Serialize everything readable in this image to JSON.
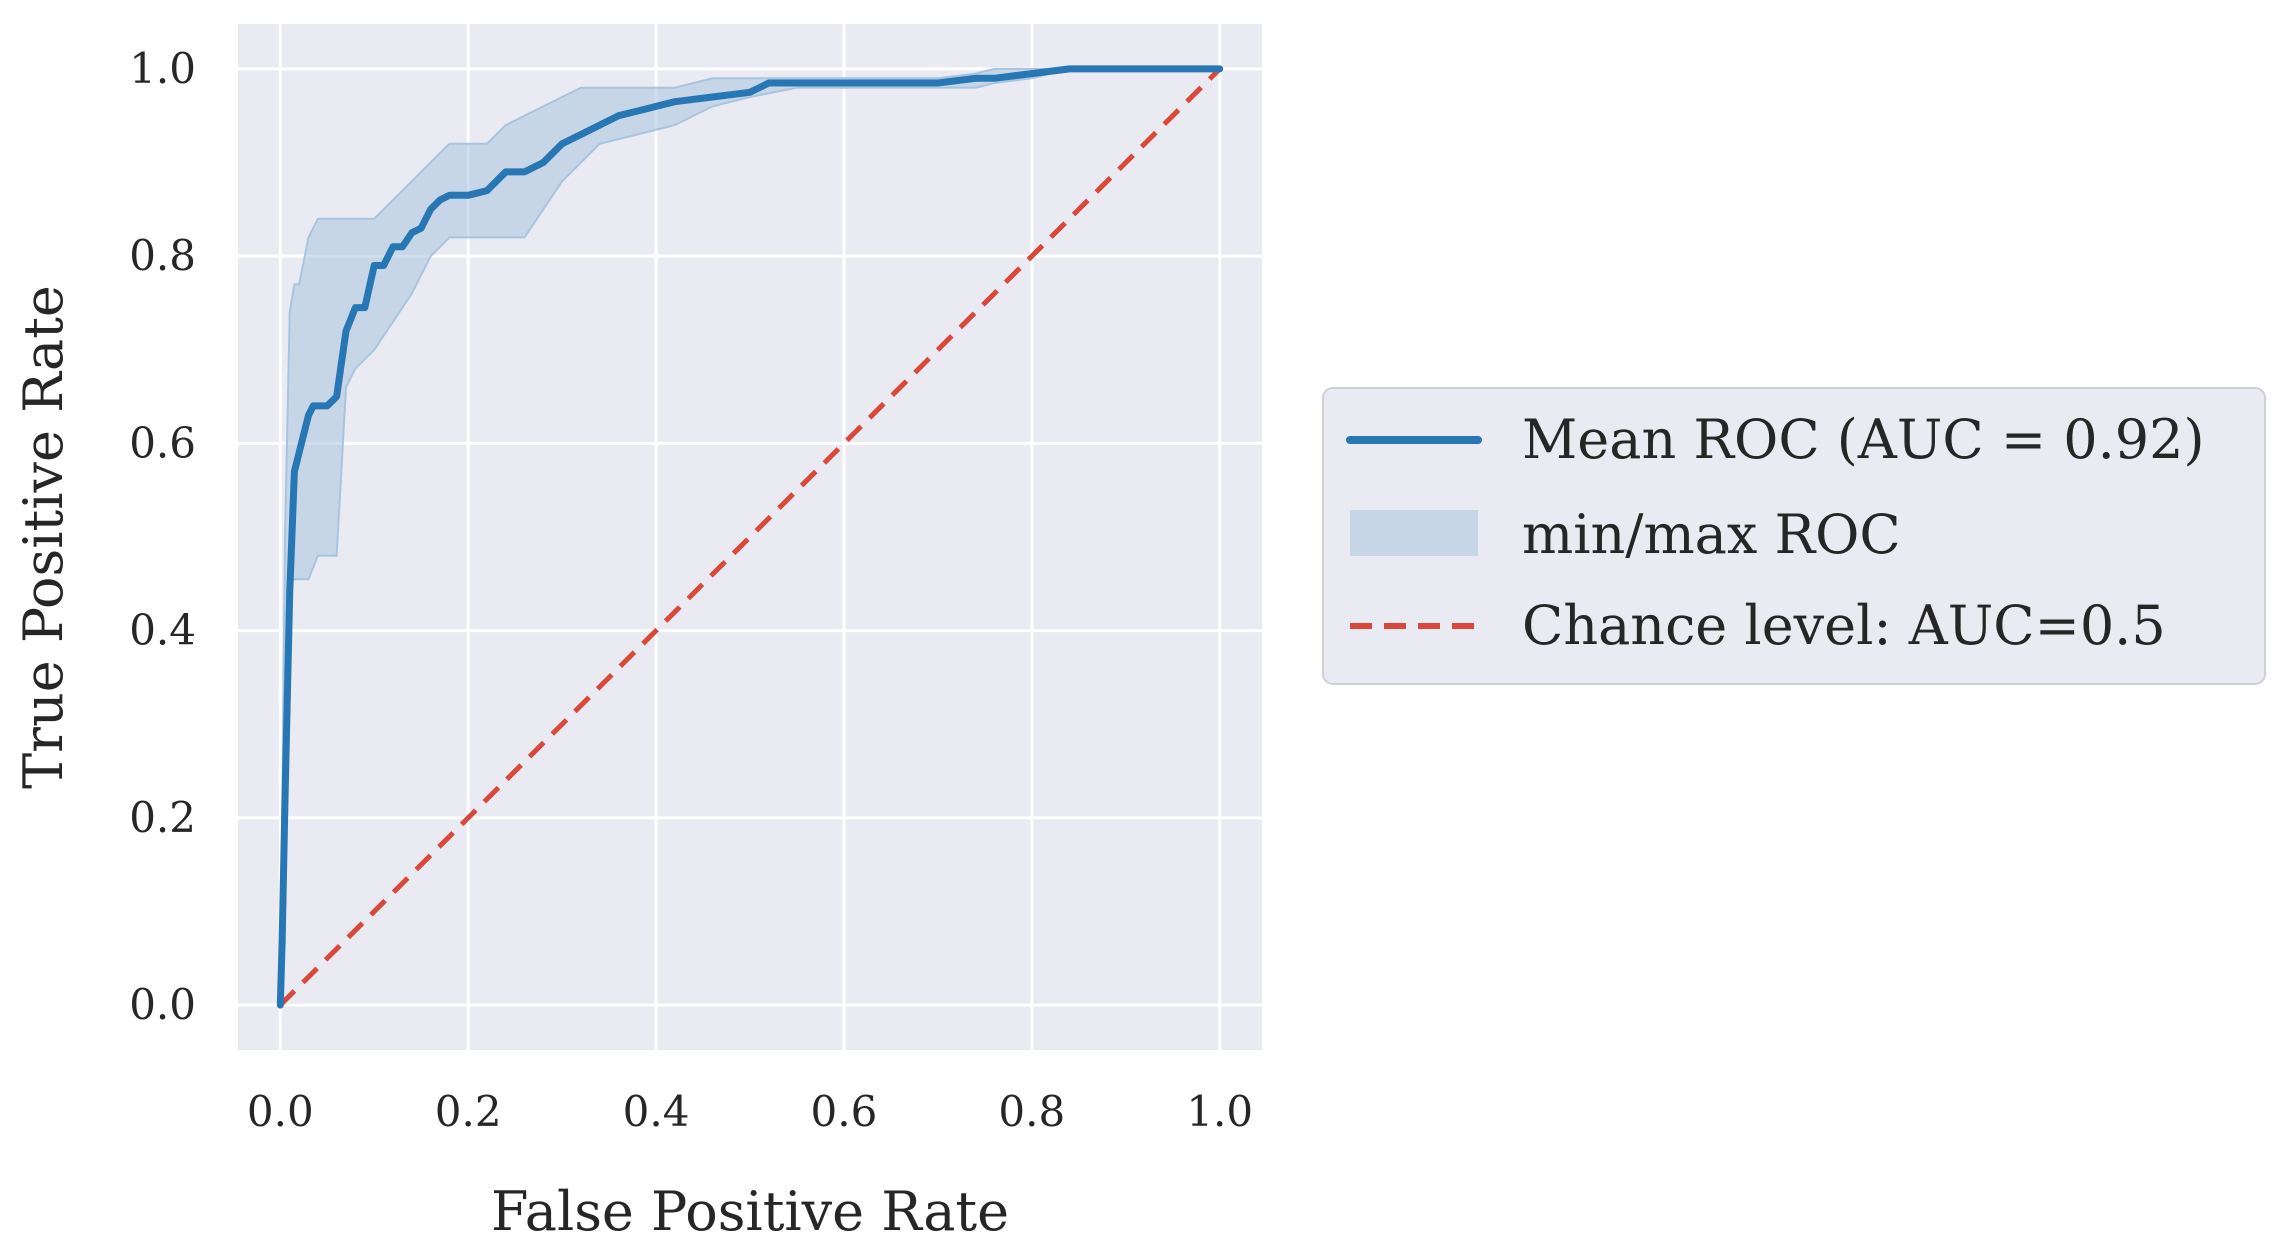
{
  "chart_data": {
    "type": "line",
    "title": "",
    "xlabel": "False Positive Rate",
    "ylabel": "True Positive Rate",
    "xlim": [
      -0.045,
      1.045
    ],
    "ylim": [
      -0.048,
      1.048
    ],
    "xticks": [
      0.0,
      0.2,
      0.4,
      0.6,
      0.8,
      1.0
    ],
    "yticks": [
      0.0,
      0.2,
      0.4,
      0.6,
      0.8,
      1.0
    ],
    "xtick_labels": [
      "0.0",
      "0.2",
      "0.4",
      "0.6",
      "0.8",
      "1.0"
    ],
    "ytick_labels": [
      "0.0",
      "0.2",
      "0.4",
      "0.6",
      "0.8",
      "1.0"
    ],
    "grid": true,
    "legend_position": "right-outside",
    "colors": {
      "background": "#eaeaf2",
      "grid": "#ffffff",
      "mean": "#2677b4",
      "band": "#a8c4df",
      "chance": "#d9483b"
    },
    "series": [
      {
        "name": "Mean ROC (AUC = 0.92)",
        "kind": "line",
        "x": [
          0.0,
          0.002,
          0.005,
          0.01,
          0.015,
          0.02,
          0.025,
          0.03,
          0.035,
          0.04,
          0.05,
          0.06,
          0.07,
          0.08,
          0.09,
          0.1,
          0.11,
          0.12,
          0.13,
          0.14,
          0.15,
          0.16,
          0.17,
          0.18,
          0.2,
          0.22,
          0.24,
          0.26,
          0.28,
          0.3,
          0.32,
          0.34,
          0.36,
          0.38,
          0.4,
          0.42,
          0.46,
          0.5,
          0.52,
          0.6,
          0.7,
          0.74,
          0.76,
          0.8,
          0.84,
          0.9,
          1.0
        ],
        "y": [
          0.0,
          0.07,
          0.22,
          0.44,
          0.57,
          0.59,
          0.61,
          0.63,
          0.64,
          0.64,
          0.64,
          0.65,
          0.72,
          0.745,
          0.745,
          0.79,
          0.79,
          0.81,
          0.81,
          0.825,
          0.83,
          0.85,
          0.86,
          0.865,
          0.865,
          0.87,
          0.89,
          0.89,
          0.9,
          0.92,
          0.93,
          0.94,
          0.95,
          0.955,
          0.96,
          0.965,
          0.97,
          0.975,
          0.985,
          0.985,
          0.985,
          0.99,
          0.99,
          0.995,
          1.0,
          1.0,
          1.0
        ]
      },
      {
        "name": "min/max ROC",
        "kind": "band",
        "x": [
          0.0,
          0.005,
          0.01,
          0.015,
          0.02,
          0.03,
          0.04,
          0.05,
          0.06,
          0.07,
          0.08,
          0.1,
          0.12,
          0.14,
          0.16,
          0.18,
          0.2,
          0.22,
          0.24,
          0.26,
          0.28,
          0.3,
          0.32,
          0.34,
          0.38,
          0.42,
          0.46,
          0.5,
          0.55,
          0.6,
          0.7,
          0.74,
          0.76,
          0.8,
          0.84,
          1.0
        ],
        "y_lower": [
          0.0,
          0.1,
          0.45,
          0.455,
          0.455,
          0.455,
          0.48,
          0.48,
          0.48,
          0.66,
          0.68,
          0.7,
          0.73,
          0.76,
          0.8,
          0.82,
          0.82,
          0.82,
          0.82,
          0.82,
          0.85,
          0.88,
          0.9,
          0.92,
          0.93,
          0.94,
          0.96,
          0.97,
          0.98,
          0.98,
          0.98,
          0.98,
          0.985,
          0.99,
          1.0,
          1.0
        ],
        "y_upper": [
          0.0,
          0.5,
          0.74,
          0.77,
          0.77,
          0.82,
          0.84,
          0.84,
          0.84,
          0.84,
          0.84,
          0.84,
          0.86,
          0.88,
          0.9,
          0.92,
          0.92,
          0.92,
          0.94,
          0.95,
          0.96,
          0.97,
          0.98,
          0.98,
          0.98,
          0.98,
          0.99,
          0.99,
          0.99,
          0.99,
          0.99,
          0.995,
          1.0,
          1.0,
          1.0,
          1.0
        ]
      },
      {
        "name": "Chance level: AUC=0.5",
        "kind": "dashed-line",
        "x": [
          0.0,
          1.0
        ],
        "y": [
          0.0,
          1.0
        ]
      }
    ]
  }
}
